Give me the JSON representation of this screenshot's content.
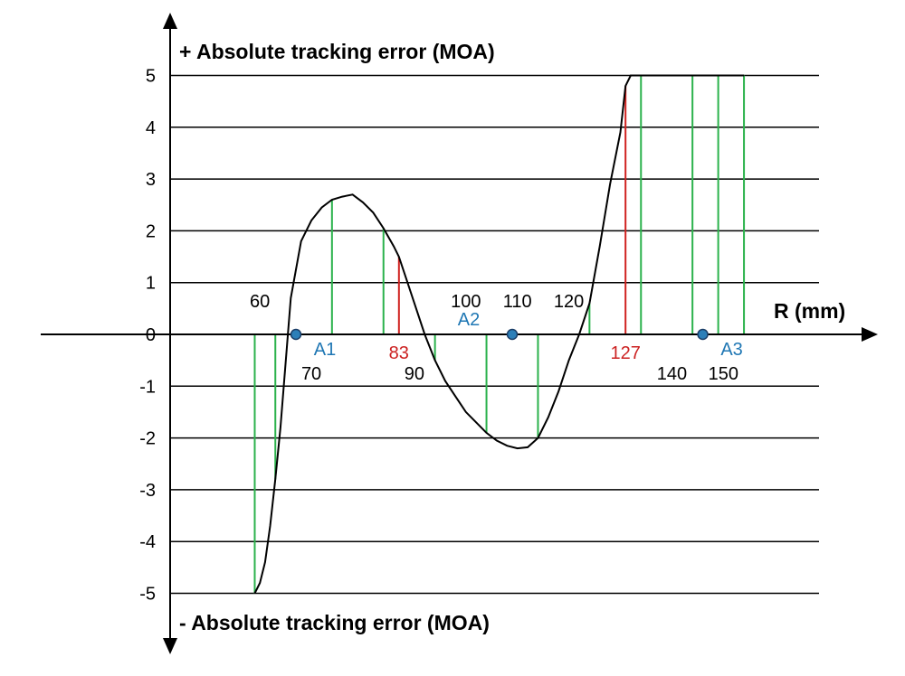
{
  "chart_data": {
    "type": "line",
    "title_top": "+ Absolute tracking error (MOA)",
    "title_bottom": "- Absolute tracking error (MOA)",
    "xlabel": "R (mm)",
    "ylim": [
      -5,
      5
    ],
    "yticks": [
      "5",
      "4",
      "3",
      "2",
      "1",
      "0",
      "-1",
      "-2",
      "-3",
      "-4",
      "-5"
    ],
    "grid": true,
    "x_tick_labels": [
      {
        "text": "60",
        "x": 56
      },
      {
        "text": "70",
        "x": 66
      },
      {
        "text": "90",
        "x": 86
      },
      {
        "text": "100",
        "x": 96
      },
      {
        "text": "110",
        "x": 106
      },
      {
        "text": "120",
        "x": 116
      },
      {
        "text": "140",
        "x": 136
      },
      {
        "text": "150",
        "x": 146
      }
    ],
    "series": [
      {
        "x": [
          55,
          56,
          57,
          58,
          59,
          60,
          62,
          64,
          66,
          68,
          70,
          72,
          74,
          76,
          78,
          80,
          82,
          83,
          84,
          86,
          88,
          90,
          92,
          94,
          96,
          98,
          100,
          102,
          104,
          106,
          108,
          110,
          112,
          114,
          116,
          118,
          120,
          122,
          124,
          126,
          127,
          128,
          130,
          132,
          134,
          136,
          138,
          140,
          142,
          144,
          146,
          148,
          150
        ],
        "y": [
          -5.0,
          -4.8,
          -4.4,
          -3.7,
          -2.8,
          -1.8,
          0.7,
          1.8,
          2.2,
          2.45,
          2.6,
          2.66,
          2.7,
          2.55,
          2.35,
          2.05,
          1.7,
          1.5,
          1.2,
          0.6,
          0,
          -0.5,
          -0.9,
          -1.2,
          -1.5,
          -1.7,
          -1.9,
          -2.05,
          -2.15,
          -2.2,
          -2.18,
          -2.0,
          -1.6,
          -1.1,
          -0.5,
          0,
          0.6,
          1.7,
          2.9,
          3.9,
          4.8,
          5.0,
          5.0,
          5.0,
          5.0,
          5.0,
          5.0,
          5.0,
          5.0,
          5.0,
          5.0,
          5.0,
          5.0
        ]
      }
    ],
    "drop_lines_green": [
      55,
      59,
      70,
      80,
      90,
      100,
      110,
      120,
      130,
      140,
      145,
      150
    ],
    "drop_lines_red": [
      83,
      127
    ],
    "zero_crossings": [
      {
        "label": "A1",
        "x": 63
      },
      {
        "label": "A2",
        "x": 105
      },
      {
        "label": "A3",
        "x": 142
      }
    ],
    "special_labels": [
      {
        "text": "83",
        "x": 83
      },
      {
        "text": "127",
        "x": 127
      }
    ],
    "colors": {
      "curve": "#000000",
      "grid": "#000000",
      "green_lines": "#2bb24c",
      "red_lines": "#d0221f",
      "markers": "#2c7fb8",
      "marker_labels": "#1f77b4",
      "special_labels": "#cc2222"
    }
  }
}
